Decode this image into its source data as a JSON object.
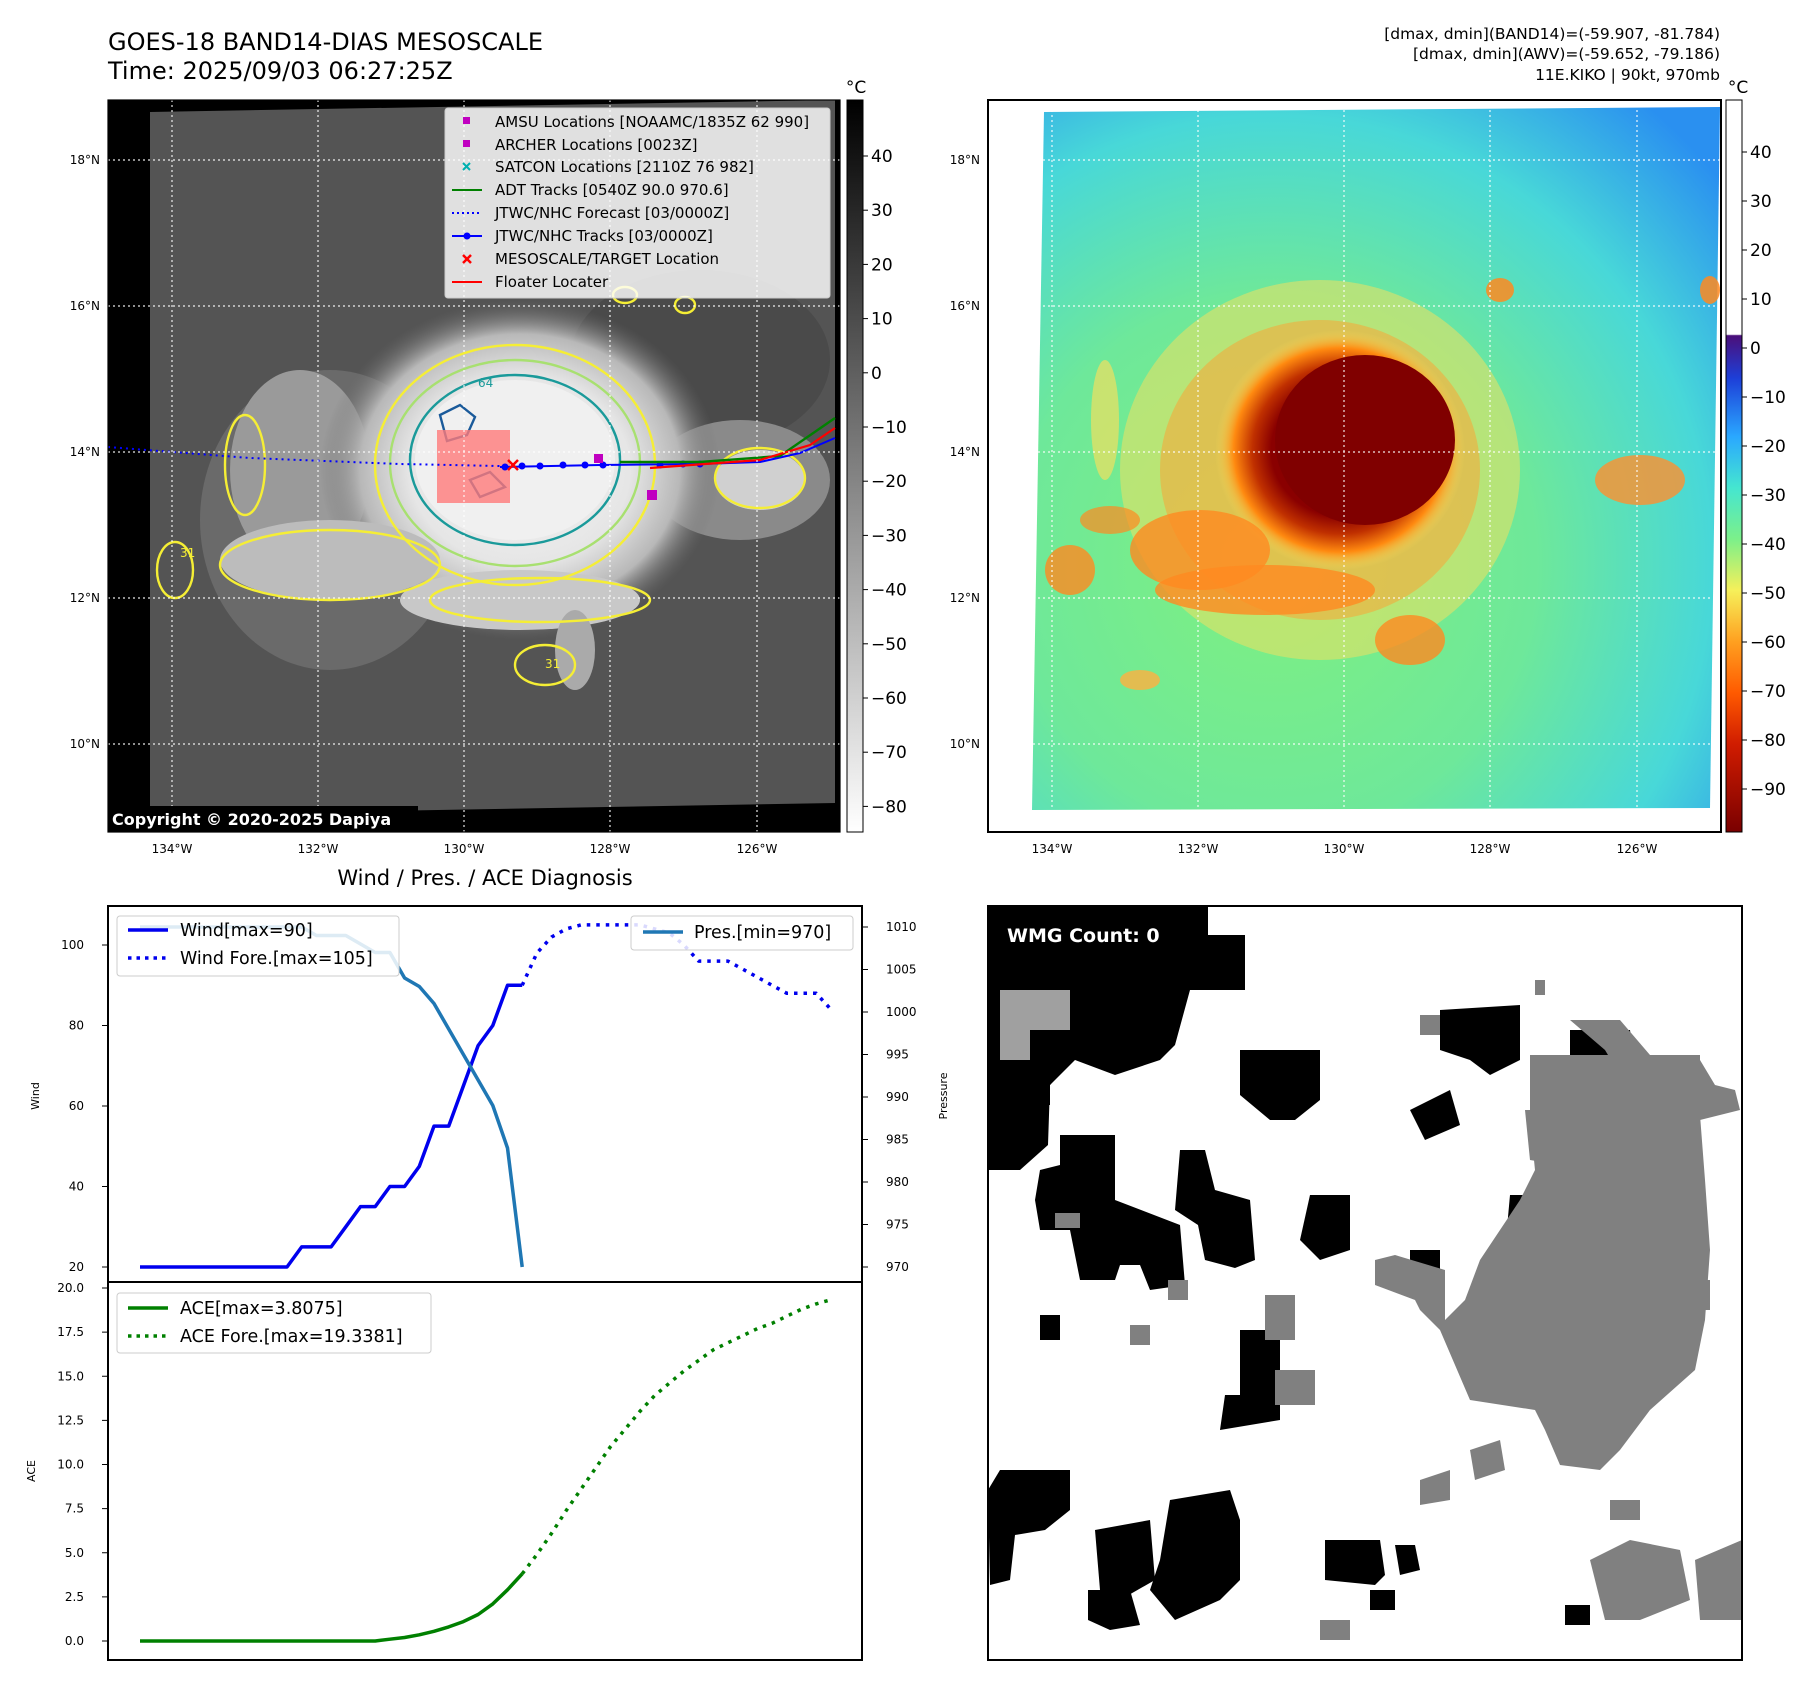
{
  "header": {
    "title_line1": "GOES-18 BAND14-DIAS MESOSCALE",
    "title_line2": "Time: 2025/09/03 06:27:25Z",
    "info_line1": "[dmax, dmin](BAND14)=(-59.907, -81.784)",
    "info_line2": "[dmax, dmin](AWV)=(-59.652, -79.186)",
    "info_line3": "11E.KIKO | 90kt, 970mb"
  },
  "map_axes": {
    "lat_labels": [
      "18°N",
      "16°N",
      "14°N",
      "12°N",
      "10°N"
    ],
    "lon_labels": [
      "134°W",
      "132°W",
      "130°W",
      "128°W",
      "126°W"
    ]
  },
  "ir_panel": {
    "copyright": "Copyright © 2020-2025 Dapiya",
    "legend": [
      {
        "label": "AMSU Locations [NOAAMC/1835Z 62 990]",
        "marker": "square",
        "color": "#c000c0"
      },
      {
        "label": "ARCHER Locations [0023Z]",
        "marker": "square",
        "color": "#c000c0"
      },
      {
        "label": "SATCON Locations [2110Z 76 982]",
        "marker": "x",
        "color": "#00b0b0"
      },
      {
        "label": "ADT Tracks [0540Z 90.0 970.6]",
        "marker": "line",
        "color": "#008000"
      },
      {
        "label": "JTWC/NHC Forecast [03/0000Z]",
        "marker": "dotted",
        "color": "#0000ff"
      },
      {
        "label": "JTWC/NHC Tracks [03/0000Z]",
        "marker": "line-dot",
        "color": "#0000ff"
      },
      {
        "label": "MESOSCALE/TARGET Location",
        "marker": "x",
        "color": "#ff0000"
      },
      {
        "label": "Floater Locater",
        "marker": "line",
        "color": "#ff0000"
      }
    ],
    "contour_labels": [
      "64",
      "31",
      "31"
    ],
    "colorbar": {
      "unit": "°C",
      "ticks": [
        "40",
        "30",
        "20",
        "10",
        "0",
        "−10",
        "−20",
        "−30",
        "−40",
        "−50",
        "−60",
        "−70",
        "−80"
      ]
    }
  },
  "awv_panel": {
    "colorbar": {
      "unit": "°C",
      "ticks": [
        "40",
        "30",
        "20",
        "10",
        "0",
        "−10",
        "−20",
        "−30",
        "−40",
        "−50",
        "−60",
        "−70",
        "−80",
        "−90"
      ]
    }
  },
  "diag_panel": {
    "title": "Wind / Pres. / ACE Diagnosis",
    "wind_ylabel": "Wind",
    "pres_ylabel": "Pressure",
    "ace_ylabel": "ACE",
    "wind_legend": [
      "Wind[max=90]",
      "Wind Fore.[max=105]"
    ],
    "pres_legend": [
      "Pres.[min=970]"
    ],
    "ace_legend": [
      "ACE[max=3.8075]",
      "ACE Fore.[max=19.3381]"
    ],
    "wind_ticks": [
      "100",
      "80",
      "60",
      "40",
      "20"
    ],
    "pres_ticks": [
      "1010",
      "1005",
      "1000",
      "995",
      "990",
      "985",
      "980",
      "975",
      "970"
    ],
    "ace_ticks": [
      "20.0",
      "17.5",
      "15.0",
      "12.5",
      "10.0",
      "7.5",
      "5.0",
      "2.5",
      "0.0"
    ]
  },
  "wmg_panel": {
    "label": "WMG Count: 0"
  },
  "colors": {
    "wind": "#0000ee",
    "pressure": "#1f77b4",
    "ace": "#008000"
  },
  "chart_data": [
    {
      "type": "line",
      "title": "Wind / Pres. / ACE Diagnosis",
      "ylabel": "Wind",
      "ylim": [
        18,
        108
      ],
      "series": [
        {
          "name": "Wind[max=90]",
          "style": "solid",
          "color": "#0000ee",
          "x": [
            0,
            1,
            2,
            3,
            4,
            5,
            6,
            7,
            8,
            9,
            10,
            11,
            12,
            13,
            14,
            15,
            16,
            17,
            18,
            19,
            20,
            21,
            22,
            23,
            24,
            25,
            26
          ],
          "values": [
            20,
            20,
            20,
            20,
            20,
            20,
            20,
            20,
            20,
            20,
            20,
            25,
            25,
            25,
            30,
            35,
            35,
            40,
            40,
            45,
            55,
            55,
            65,
            75,
            80,
            90,
            90
          ]
        },
        {
          "name": "Wind Fore.[max=105]",
          "style": "dotted",
          "color": "#0000ee",
          "x": [
            26,
            27,
            28,
            29,
            30,
            31,
            32,
            33,
            34,
            35,
            36,
            37,
            38,
            39,
            40,
            41,
            42,
            43,
            44,
            45,
            46,
            47
          ],
          "values": [
            90,
            98,
            102,
            104,
            105,
            105,
            105,
            105,
            105,
            104,
            103,
            100,
            96,
            96,
            96,
            94,
            92,
            90,
            88,
            88,
            88,
            84
          ]
        }
      ]
    },
    {
      "type": "line",
      "ylabel": "Pressure",
      "ylim": [
        969,
        1011
      ],
      "series": [
        {
          "name": "Pres.[min=970]",
          "style": "solid",
          "color": "#1f77b4",
          "x": [
            0,
            1,
            2,
            3,
            4,
            5,
            6,
            7,
            8,
            9,
            10,
            11,
            12,
            13,
            14,
            15,
            16,
            17,
            18,
            19,
            20,
            21,
            22,
            23,
            24,
            25,
            26
          ],
          "values": [
            1010,
            1010,
            1010,
            1010,
            1010,
            1010,
            1010,
            1010,
            1010,
            1010,
            1010,
            1010,
            1009,
            1009,
            1009,
            1008,
            1007,
            1007,
            1004,
            1003,
            1001,
            998,
            995,
            992,
            989,
            984,
            970
          ]
        }
      ]
    },
    {
      "type": "line",
      "ylabel": "ACE",
      "ylim": [
        -1,
        20
      ],
      "series": [
        {
          "name": "ACE[max=3.8075]",
          "style": "solid",
          "color": "#008000",
          "x": [
            0,
            2,
            4,
            6,
            8,
            10,
            12,
            14,
            16,
            17,
            18,
            19,
            20,
            21,
            22,
            23,
            24,
            25,
            26
          ],
          "values": [
            0,
            0,
            0,
            0,
            0,
            0,
            0,
            0,
            0,
            0.1,
            0.2,
            0.35,
            0.55,
            0.8,
            1.1,
            1.5,
            2.1,
            2.9,
            3.8075
          ]
        },
        {
          "name": "ACE Fore.[max=19.3381]",
          "style": "dotted",
          "color": "#008000",
          "x": [
            26,
            27,
            28,
            29,
            30,
            31,
            32,
            33,
            34,
            35,
            36,
            37,
            38,
            39,
            40,
            41,
            42,
            43,
            44,
            45,
            46,
            47
          ],
          "values": [
            3.8075,
            4.9,
            6.1,
            7.4,
            8.6,
            9.8,
            11.0,
            12.0,
            13.0,
            13.9,
            14.6,
            15.3,
            15.9,
            16.5,
            16.9,
            17.3,
            17.7,
            18.0,
            18.4,
            18.8,
            19.1,
            19.3381
          ]
        }
      ]
    }
  ]
}
